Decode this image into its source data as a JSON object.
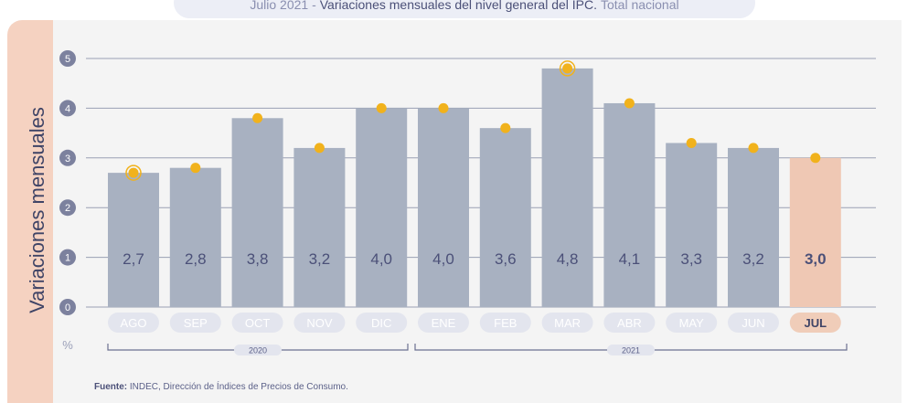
{
  "title": {
    "prefix": "Julio 2021 -",
    "main": "Variaciones mensuales del nivel general del IPC.",
    "suffix": "Total nacional"
  },
  "ylabel": "Variaciones mensuales",
  "unit_label": "%",
  "year_labels": [
    "2020",
    "2021"
  ],
  "source": {
    "label": "Fuente:",
    "text": "INDEC, Dirección de Índices de Precios de Consumo."
  },
  "colors": {
    "bar": "#a8b1c1",
    "highlight_bar": "#efc8b4",
    "dot": "#f1b21c",
    "side_band": "#f5d2c1",
    "pill": "#e3e5ee",
    "highlight_pill": "#f0cdb9",
    "text": "#4b5078"
  },
  "chart_data": {
    "type": "bar",
    "categories": [
      "AGO",
      "SEP",
      "OCT",
      "NOV",
      "DIC",
      "ENE",
      "FEB",
      "MAR",
      "ABR",
      "MAY",
      "JUN",
      "JUL"
    ],
    "values": [
      2.7,
      2.8,
      3.8,
      3.2,
      4.0,
      4.0,
      3.6,
      4.8,
      4.1,
      3.3,
      3.2,
      3.0
    ],
    "value_labels": [
      "2,7",
      "2,8",
      "3,8",
      "3,2",
      "4,0",
      "4,0",
      "3,6",
      "4,8",
      "4,1",
      "3,3",
      "3,2",
      "3,0"
    ],
    "highlight_index": 11,
    "ylim": [
      0,
      5
    ],
    "yticks": [
      0,
      1,
      2,
      3,
      4,
      5
    ],
    "grid": true,
    "xlabel": "",
    "ylabel": "Variaciones mensuales"
  }
}
